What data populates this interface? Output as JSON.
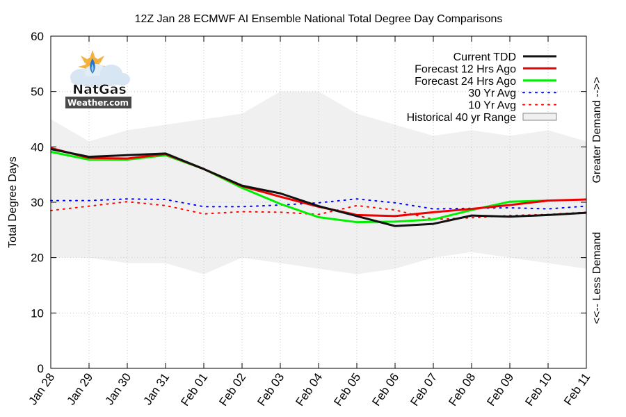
{
  "chart_data": {
    "type": "line",
    "title": "12Z Jan 28 ECMWF AI Ensemble National Total Degree Day Comparisons",
    "ylabel": "Total Degree Days",
    "right_label_top": "Greater Demand -->>",
    "right_label_bottom": "<<-- Less Demand",
    "ylim": [
      0,
      60
    ],
    "yticks": [
      "0",
      "10",
      "20",
      "30",
      "40",
      "50",
      "60"
    ],
    "categories": [
      "Jan 28",
      "Jan 29",
      "Jan 30",
      "Jan 31",
      "Feb 01",
      "Feb 02",
      "Feb 03",
      "Feb 04",
      "Feb 05",
      "Feb 06",
      "Feb 07",
      "Feb 08",
      "Feb 09",
      "Feb 10",
      "Feb 11"
    ],
    "range": {
      "name": "Historical 40 yr Range",
      "upper": [
        45,
        41,
        43,
        44,
        45,
        46,
        50,
        50,
        46,
        44,
        42,
        43,
        42,
        43,
        41
      ],
      "lower": [
        20,
        20,
        19,
        19,
        17,
        20,
        19,
        18,
        17,
        18,
        20,
        21,
        20,
        19,
        18
      ]
    },
    "series": [
      {
        "name": "30 Yr Avg",
        "color": "#0000ff",
        "style": "dotted",
        "values": [
          30.3,
          30.3,
          30.6,
          30.5,
          29.2,
          29.2,
          29.5,
          29.9,
          30.6,
          29.9,
          28.8,
          28.9,
          29.0,
          28.8,
          29.3
        ]
      },
      {
        "name": "10 Yr Avg",
        "color": "#ff0000",
        "style": "dotted",
        "values": [
          28.5,
          29.3,
          30.1,
          29.4,
          27.9,
          28.3,
          28.2,
          27.8,
          29.4,
          28.6,
          26.9,
          27.2,
          27.6,
          27.8,
          28.2
        ]
      },
      {
        "name": "Forecast 24 Hrs Ago",
        "color": "#00ee00",
        "style": "solid",
        "values": [
          39.1,
          37.7,
          37.7,
          38.5,
          36.0,
          32.6,
          29.7,
          27.3,
          26.4,
          26.5,
          26.9,
          28.6,
          30.1,
          30.3,
          null
        ]
      },
      {
        "name": "Forecast 12 Hrs Ago",
        "color": "#ee0000",
        "style": "solid",
        "values": [
          39.8,
          38.0,
          37.9,
          38.7,
          36.0,
          32.9,
          31.0,
          29.2,
          27.7,
          27.5,
          28.2,
          28.8,
          29.5,
          30.3,
          30.5
        ]
      },
      {
        "name": "Current TDD",
        "color": "#111111",
        "style": "solid",
        "values": [
          39.6,
          38.2,
          38.5,
          38.8,
          36.0,
          33.0,
          31.6,
          29.3,
          27.5,
          25.7,
          26.1,
          27.6,
          27.4,
          27.7,
          28.1
        ]
      }
    ],
    "legend": {
      "position": "top-right",
      "entries": [
        "Current TDD",
        "Forecast 12 Hrs Ago",
        "Forecast 24 Hrs Ago",
        "30 Yr Avg",
        "10 Yr Avg",
        "Historical 40 yr Range"
      ]
    },
    "grid": true
  },
  "logo": {
    "line1": "NatGas",
    "line2": "Weather.com"
  },
  "colors": {
    "range_fill": "#f0f0f0",
    "grid": "#c8c8c8"
  }
}
